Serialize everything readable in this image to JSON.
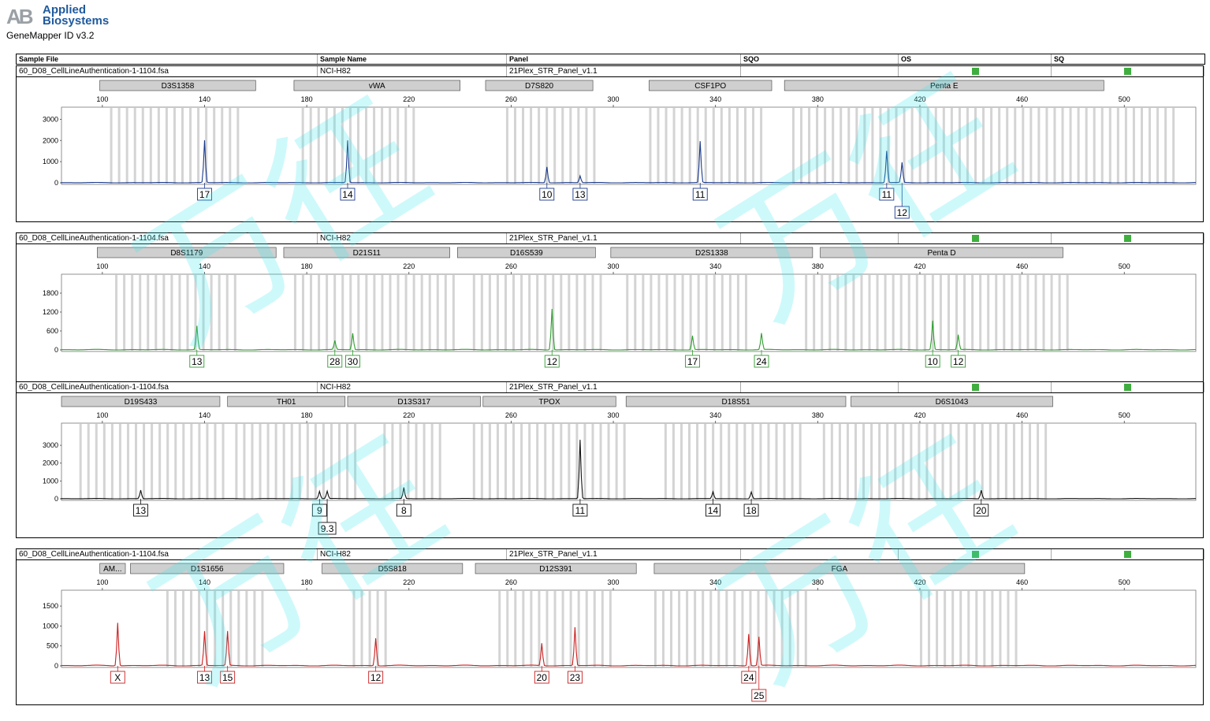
{
  "brand": {
    "mark": "AB",
    "line1": "Applied",
    "line2": "Biosystems",
    "app": "GeneMapper ID v3.2"
  },
  "header": {
    "sample_file": "Sample File",
    "sample_name": "Sample Name",
    "panel": "Panel",
    "sqo": "SQO",
    "os": "OS",
    "sq": "SQ"
  },
  "colors": {
    "blue": "#1a3a8c",
    "green": "#2f9e2f",
    "black": "#111111",
    "red": "#cc1f1f",
    "bin": "#d4d4d4",
    "marker": "#cfcfcf",
    "quality": "#3fae3f",
    "watermark": "#3ce6f0"
  },
  "watermark_icon": "watermark-glyph",
  "x_axis": {
    "min": 84,
    "max": 528,
    "ticks": [
      100,
      140,
      180,
      220,
      260,
      300,
      340,
      380,
      420,
      460,
      500
    ]
  },
  "chart_data": [
    {
      "type": "line",
      "color": "blue",
      "sample_file": "60_D08_CellLineAuthentication-1-1104.fsa",
      "sample_name": "NCI-H82",
      "panel": "21Plex_STR_Panel_v1.1",
      "ylim": [
        0,
        3200
      ],
      "yticks": [
        0,
        1000,
        2000,
        3000
      ],
      "markers": [
        {
          "name": "D3S1358",
          "from": 99,
          "to": 160
        },
        {
          "name": "vWA",
          "from": 175,
          "to": 240
        },
        {
          "name": "D7S820",
          "from": 250,
          "to": 292
        },
        {
          "name": "CSF1PO",
          "from": 314,
          "to": 362
        },
        {
          "name": "Penta E",
          "from": 367,
          "to": 492
        }
      ],
      "bin_ranges": [
        [
          103,
          155
        ],
        [
          178,
          222
        ],
        [
          258,
          295
        ],
        [
          314,
          360
        ],
        [
          370,
          520
        ]
      ],
      "peaks": [
        {
          "x": 140,
          "h": 2000
        },
        {
          "x": 196,
          "h": 2000
        },
        {
          "x": 274,
          "h": 750
        },
        {
          "x": 287,
          "h": 320
        },
        {
          "x": 334,
          "h": 1950
        },
        {
          "x": 407,
          "h": 1500
        },
        {
          "x": 413,
          "h": 950
        }
      ],
      "alleles": [
        {
          "x": 140,
          "label": "17",
          "row": 0
        },
        {
          "x": 196,
          "label": "14",
          "row": 0
        },
        {
          "x": 274,
          "label": "10",
          "row": 0
        },
        {
          "x": 287,
          "label": "13",
          "row": 0
        },
        {
          "x": 334,
          "label": "11",
          "row": 0
        },
        {
          "x": 407,
          "label": "11",
          "row": 0
        },
        {
          "x": 413,
          "label": "12",
          "row": 1
        }
      ]
    },
    {
      "type": "line",
      "color": "green",
      "sample_file": "60_D08_CellLineAuthentication-1-1104.fsa",
      "sample_name": "NCI-H82",
      "panel": "21Plex_STR_Panel_v1.1",
      "ylim": [
        0,
        2150
      ],
      "yticks": [
        0,
        600,
        1200,
        1800
      ],
      "markers": [
        {
          "name": "D8S1179",
          "from": 98,
          "to": 168
        },
        {
          "name": "D21S11",
          "from": 171,
          "to": 236
        },
        {
          "name": "D16S539",
          "from": 239,
          "to": 293
        },
        {
          "name": "D2S1338",
          "from": 299,
          "to": 378
        },
        {
          "name": "Penta D",
          "from": 381,
          "to": 476
        }
      ],
      "bin_ranges": [
        [
          105,
          152
        ],
        [
          175,
          237
        ],
        [
          245,
          295
        ],
        [
          305,
          352
        ],
        [
          375,
          480
        ]
      ],
      "peaks": [
        {
          "x": 137,
          "h": 750
        },
        {
          "x": 191,
          "h": 280
        },
        {
          "x": 198,
          "h": 520
        },
        {
          "x": 276,
          "h": 1300
        },
        {
          "x": 331,
          "h": 440
        },
        {
          "x": 358,
          "h": 520
        },
        {
          "x": 425,
          "h": 920
        },
        {
          "x": 435,
          "h": 470
        }
      ],
      "alleles": [
        {
          "x": 137,
          "label": "13",
          "row": 0
        },
        {
          "x": 191,
          "label": "28",
          "row": 0
        },
        {
          "x": 198,
          "label": "30",
          "row": 0
        },
        {
          "x": 276,
          "label": "12",
          "row": 0
        },
        {
          "x": 331,
          "label": "17",
          "row": 0
        },
        {
          "x": 358,
          "label": "24",
          "row": 0
        },
        {
          "x": 425,
          "label": "10",
          "row": 0
        },
        {
          "x": 435,
          "label": "12",
          "row": 0
        }
      ]
    },
    {
      "type": "line",
      "color": "black",
      "sample_file": "60_D08_CellLineAuthentication-1-1104.fsa",
      "sample_name": "NCI-H82",
      "panel": "21Plex_STR_Panel_v1.1",
      "ylim": [
        0,
        3800
      ],
      "yticks": [
        0,
        1000,
        2000,
        3000
      ],
      "markers": [
        {
          "name": "D19S433",
          "from": 84,
          "to": 146
        },
        {
          "name": "TH01",
          "from": 149,
          "to": 195
        },
        {
          "name": "D13S317",
          "from": 196,
          "to": 248
        },
        {
          "name": "TPOX",
          "from": 249,
          "to": 301
        },
        {
          "name": "D18S51",
          "from": 305,
          "to": 391
        },
        {
          "name": "D6S1043",
          "from": 393,
          "to": 472
        }
      ],
      "bin_ranges": [
        [
          91,
          148
        ],
        [
          152,
          200
        ],
        [
          210,
          232
        ],
        [
          245,
          305
        ],
        [
          320,
          375
        ],
        [
          382,
          470
        ]
      ],
      "peaks": [
        {
          "x": 115,
          "h": 480
        },
        {
          "x": 185,
          "h": 420
        },
        {
          "x": 188,
          "h": 420
        },
        {
          "x": 218,
          "h": 620
        },
        {
          "x": 287,
          "h": 3300
        },
        {
          "x": 339,
          "h": 380
        },
        {
          "x": 354,
          "h": 380
        },
        {
          "x": 444,
          "h": 480
        }
      ],
      "alleles": [
        {
          "x": 115,
          "label": "13",
          "row": 0
        },
        {
          "x": 185,
          "label": "9",
          "row": 0
        },
        {
          "x": 188,
          "label": "9.3",
          "row": 1
        },
        {
          "x": 218,
          "label": "8",
          "row": 0
        },
        {
          "x": 287,
          "label": "11",
          "row": 0
        },
        {
          "x": 339,
          "label": "14",
          "row": 0
        },
        {
          "x": 354,
          "label": "18",
          "row": 0
        },
        {
          "x": 444,
          "label": "20",
          "row": 0
        }
      ]
    },
    {
      "type": "line",
      "color": "red",
      "sample_file": "60_D08_CellLineAuthentication-1-1104.fsa",
      "sample_name": "NCI-H82",
      "panel": "21Plex_STR_Panel_v1.1",
      "ylim": [
        0,
        1700
      ],
      "yticks": [
        0,
        500,
        1000,
        1500
      ],
      "markers": [
        {
          "name": "AM...",
          "from": 99,
          "to": 109
        },
        {
          "name": "D1S1656",
          "from": 111,
          "to": 171
        },
        {
          "name": "D5S818",
          "from": 186,
          "to": 241
        },
        {
          "name": "D12S391",
          "from": 246,
          "to": 309
        },
        {
          "name": "FGA",
          "from": 316,
          "to": 461
        }
      ],
      "bin_ranges": [
        [
          125,
          165
        ],
        [
          198,
          213
        ],
        [
          255,
          300
        ],
        [
          316,
          375
        ],
        [
          420,
          460
        ]
      ],
      "peaks": [
        {
          "x": 106,
          "h": 1080
        },
        {
          "x": 140,
          "h": 860
        },
        {
          "x": 149,
          "h": 860
        },
        {
          "x": 207,
          "h": 690
        },
        {
          "x": 272,
          "h": 560
        },
        {
          "x": 285,
          "h": 960
        },
        {
          "x": 353,
          "h": 800
        },
        {
          "x": 357,
          "h": 720
        }
      ],
      "alleles": [
        {
          "x": 106,
          "label": "X",
          "row": 0
        },
        {
          "x": 140,
          "label": "13",
          "row": 0
        },
        {
          "x": 149,
          "label": "15",
          "row": 0
        },
        {
          "x": 207,
          "label": "12",
          "row": 0
        },
        {
          "x": 272,
          "label": "20",
          "row": 0
        },
        {
          "x": 285,
          "label": "23",
          "row": 0
        },
        {
          "x": 353,
          "label": "24",
          "row": 0
        },
        {
          "x": 357,
          "label": "25",
          "row": 1
        }
      ]
    }
  ]
}
